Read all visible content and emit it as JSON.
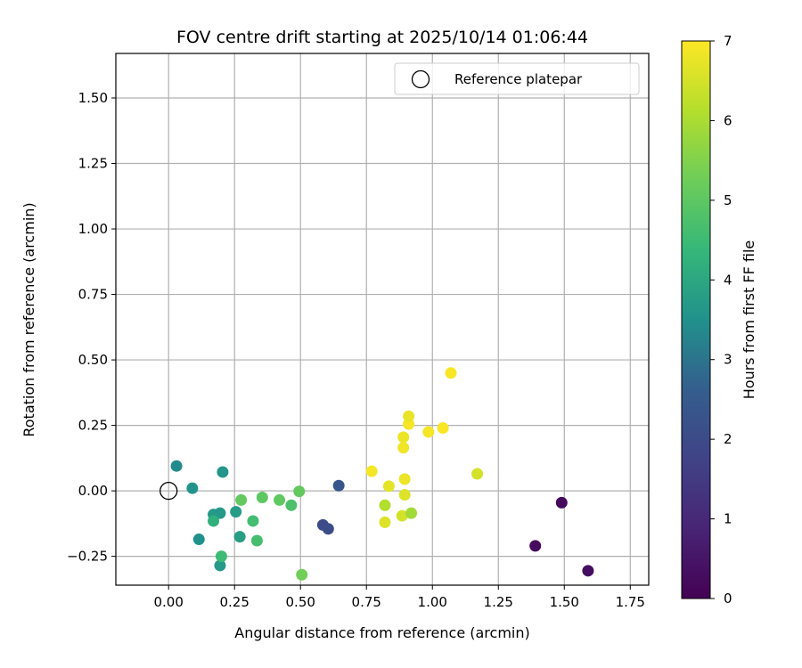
{
  "chart_data": {
    "type": "scatter",
    "title": "FOV centre drift starting at 2025/10/14 01:06:44",
    "xlabel": "Angular distance from reference (arcmin)",
    "ylabel": "Rotation from reference (arcmin)",
    "xlim": [
      -0.2,
      1.82
    ],
    "ylim": [
      -0.36,
      1.67
    ],
    "x_ticks": [
      0.0,
      0.25,
      0.5,
      0.75,
      1.0,
      1.25,
      1.5,
      1.75
    ],
    "x_tick_labels": [
      "0.00",
      "0.25",
      "0.50",
      "0.75",
      "1.00",
      "1.25",
      "1.50",
      "1.75"
    ],
    "y_ticks": [
      -0.25,
      0.0,
      0.25,
      0.5,
      0.75,
      1.0,
      1.25,
      1.5
    ],
    "y_tick_labels": [
      "−0.25",
      "0.00",
      "0.25",
      "0.50",
      "0.75",
      "1.00",
      "1.25",
      "1.50"
    ],
    "grid": true,
    "legend": {
      "placement": "top-right",
      "entries": [
        {
          "label": "Reference platepar",
          "marker": "open-circle",
          "color": "#000000"
        }
      ]
    },
    "reference_point": {
      "x": 0.0,
      "y": 0.0
    },
    "colorbar": {
      "label": "Hours from first FF file",
      "colormap": "viridis",
      "range": [
        0,
        7
      ],
      "ticks": [
        0,
        1,
        2,
        3,
        4,
        5,
        6,
        7
      ],
      "tick_labels": [
        "0",
        "1",
        "2",
        "3",
        "4",
        "5",
        "6",
        "7"
      ]
    },
    "points": [
      {
        "x": 1.49,
        "y": -0.045,
        "hours": 0.2
      },
      {
        "x": 1.39,
        "y": -0.21,
        "hours": 0.25
      },
      {
        "x": 1.59,
        "y": -0.305,
        "hours": 0.3
      },
      {
        "x": 0.585,
        "y": -0.13,
        "hours": 2.0
      },
      {
        "x": 0.605,
        "y": -0.145,
        "hours": 2.05
      },
      {
        "x": 0.645,
        "y": 0.02,
        "hours": 2.4
      },
      {
        "x": 0.03,
        "y": 0.095,
        "hours": 3.4
      },
      {
        "x": 0.09,
        "y": 0.01,
        "hours": 3.55
      },
      {
        "x": 0.205,
        "y": 0.072,
        "hours": 3.6
      },
      {
        "x": 0.115,
        "y": -0.185,
        "hours": 3.5
      },
      {
        "x": 0.17,
        "y": -0.09,
        "hours": 3.7
      },
      {
        "x": 0.195,
        "y": -0.085,
        "hours": 3.65
      },
      {
        "x": 0.255,
        "y": -0.08,
        "hours": 3.75
      },
      {
        "x": 0.27,
        "y": -0.175,
        "hours": 3.8
      },
      {
        "x": 0.195,
        "y": -0.285,
        "hours": 3.7
      },
      {
        "x": 0.17,
        "y": -0.115,
        "hours": 4.2
      },
      {
        "x": 0.2,
        "y": -0.25,
        "hours": 4.5
      },
      {
        "x": 0.32,
        "y": -0.115,
        "hours": 4.6
      },
      {
        "x": 0.335,
        "y": -0.19,
        "hours": 4.65
      },
      {
        "x": 0.465,
        "y": -0.055,
        "hours": 4.75
      },
      {
        "x": 0.275,
        "y": -0.035,
        "hours": 5.1
      },
      {
        "x": 0.355,
        "y": -0.025,
        "hours": 5.0
      },
      {
        "x": 0.42,
        "y": -0.035,
        "hours": 5.05
      },
      {
        "x": 0.495,
        "y": -0.002,
        "hours": 5.1
      },
      {
        "x": 0.505,
        "y": -0.32,
        "hours": 5.3
      },
      {
        "x": 0.82,
        "y": -0.055,
        "hours": 6.1
      },
      {
        "x": 0.82,
        "y": -0.12,
        "hours": 6.6
      },
      {
        "x": 0.885,
        "y": -0.095,
        "hours": 6.5
      },
      {
        "x": 0.92,
        "y": -0.085,
        "hours": 5.9
      },
      {
        "x": 0.835,
        "y": 0.018,
        "hours": 6.7
      },
      {
        "x": 0.895,
        "y": -0.015,
        "hours": 6.6
      },
      {
        "x": 0.895,
        "y": 0.045,
        "hours": 6.8
      },
      {
        "x": 0.77,
        "y": 0.075,
        "hours": 6.9
      },
      {
        "x": 0.89,
        "y": 0.205,
        "hours": 6.8
      },
      {
        "x": 0.89,
        "y": 0.165,
        "hours": 6.85
      },
      {
        "x": 0.91,
        "y": 0.255,
        "hours": 6.9
      },
      {
        "x": 0.91,
        "y": 0.285,
        "hours": 6.75
      },
      {
        "x": 0.985,
        "y": 0.225,
        "hours": 6.9
      },
      {
        "x": 1.04,
        "y": 0.24,
        "hours": 6.95
      },
      {
        "x": 1.07,
        "y": 0.45,
        "hours": 6.95
      },
      {
        "x": 1.17,
        "y": 0.065,
        "hours": 6.5
      }
    ]
  }
}
